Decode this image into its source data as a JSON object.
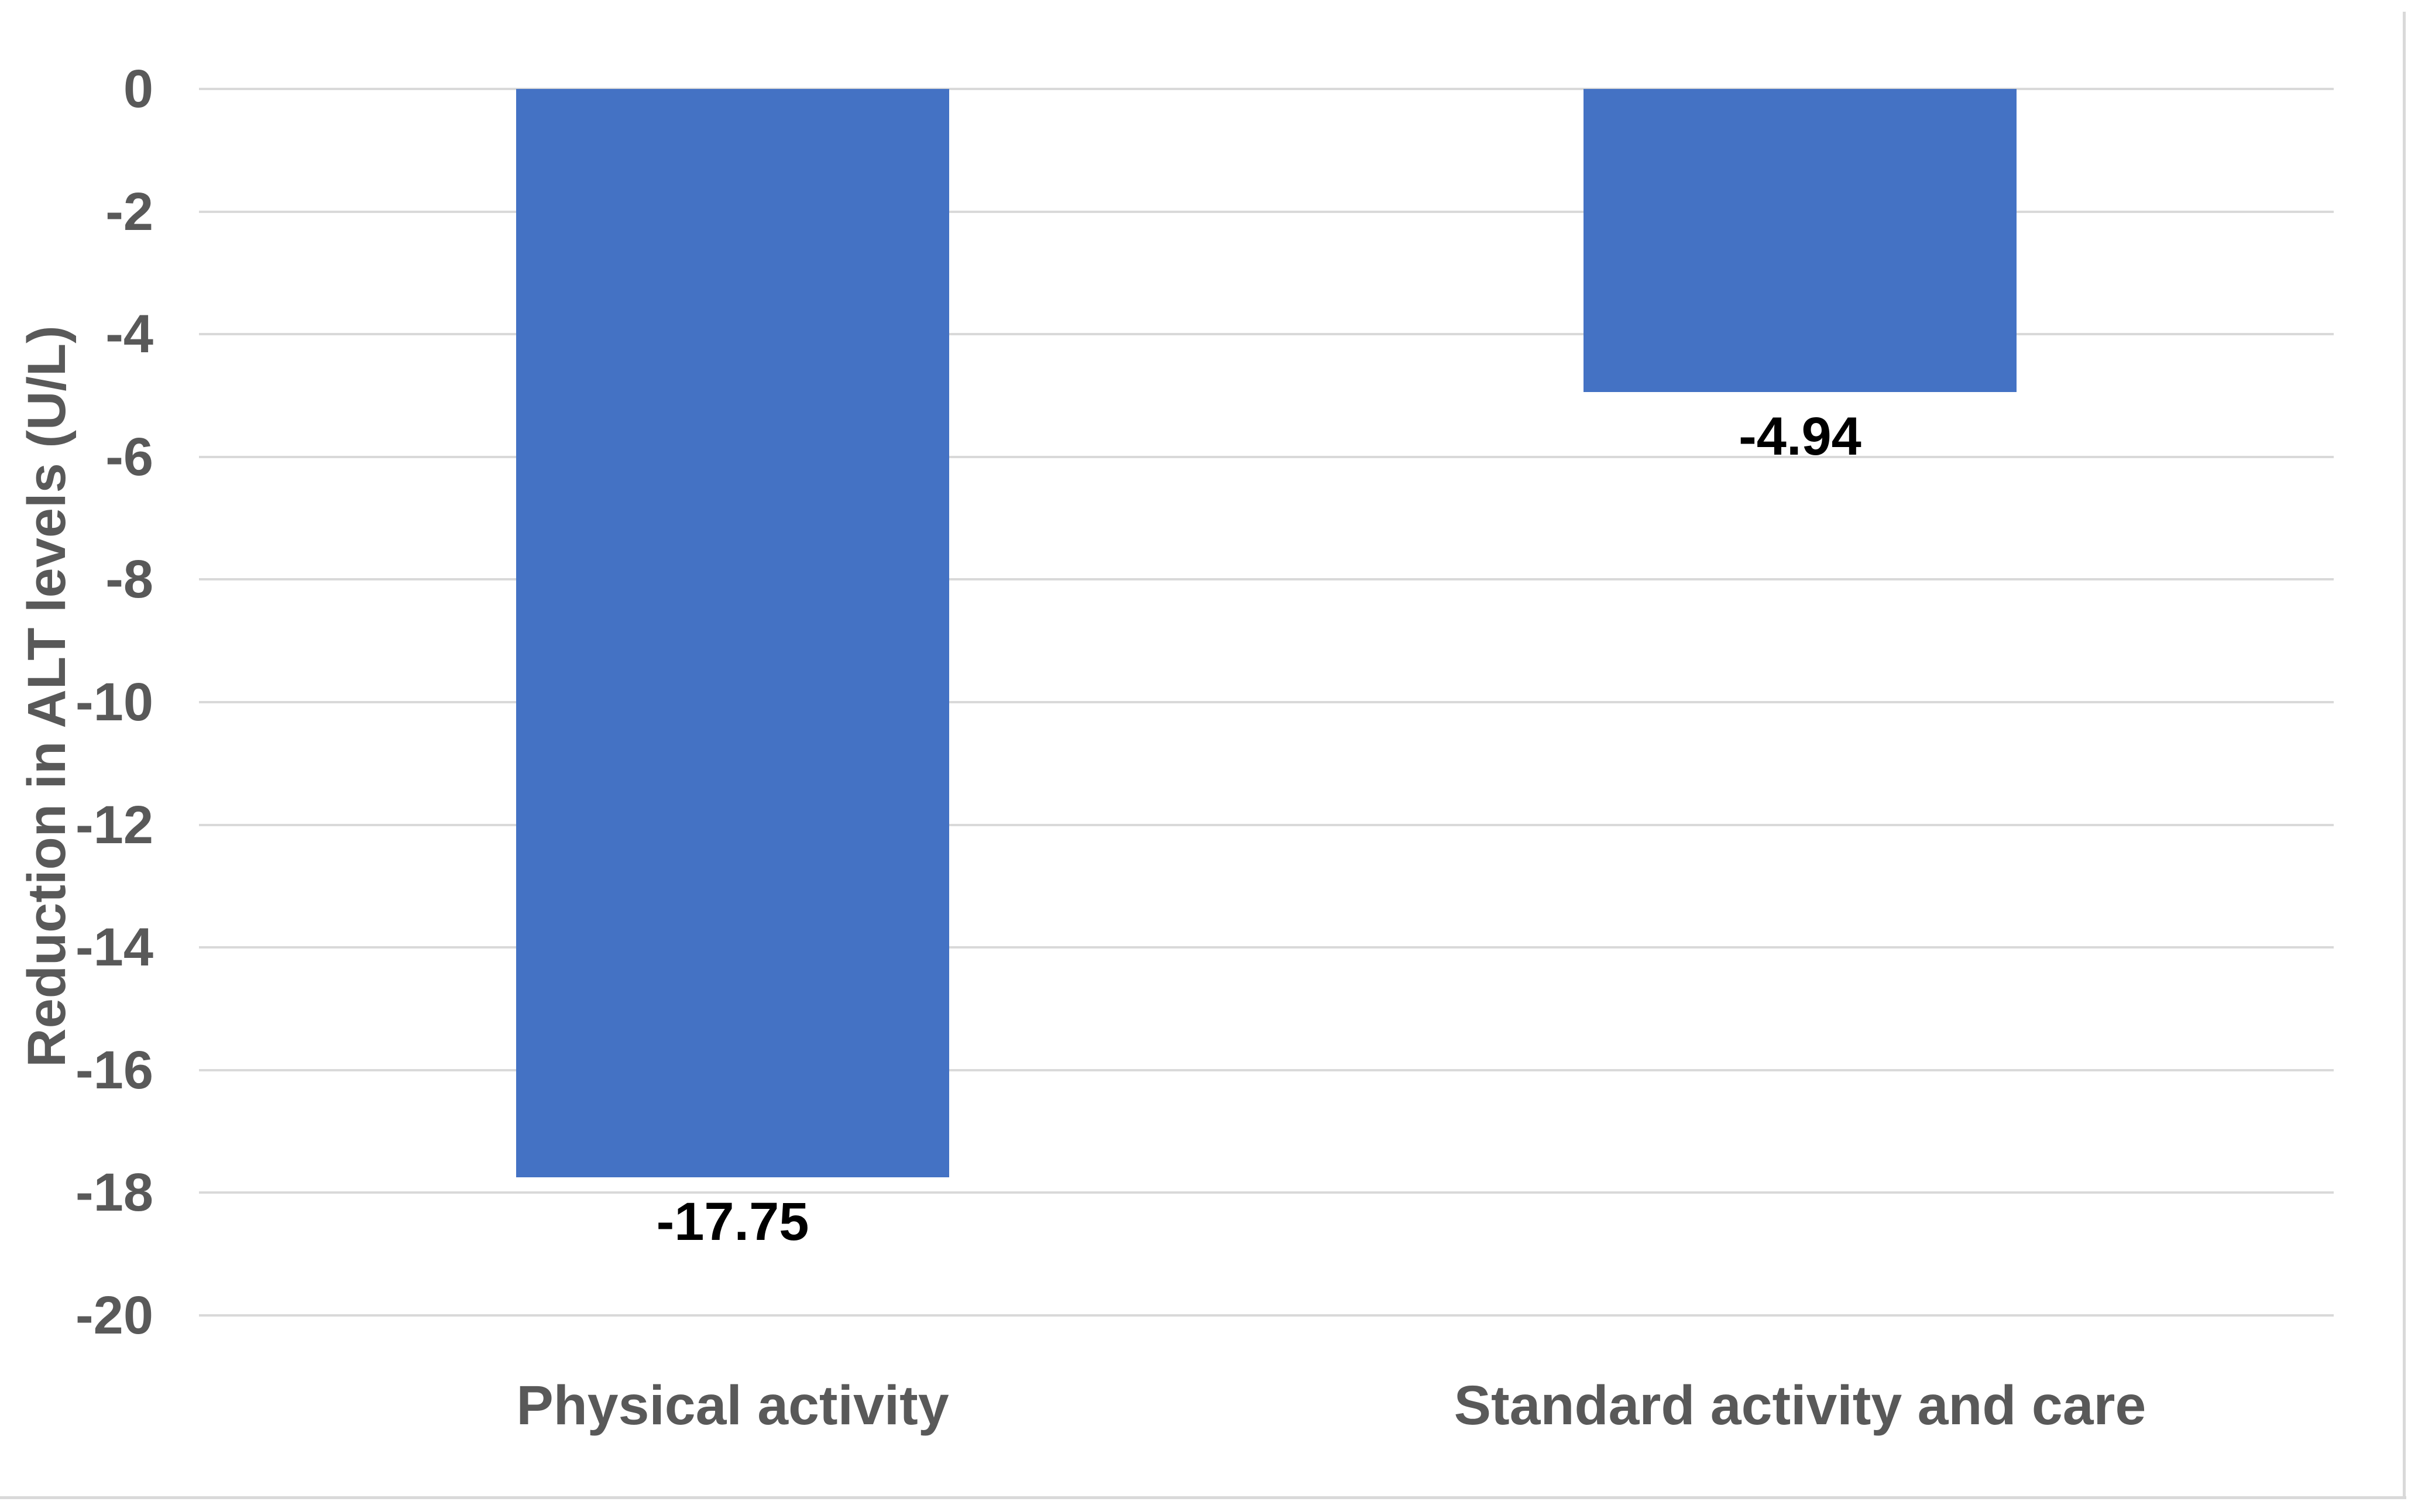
{
  "chart_data": {
    "type": "bar",
    "title": "",
    "xlabel": "",
    "ylabel": "Reduction in ALT levels (U/L)",
    "categories": [
      "Physical activity",
      "Standard activity and care"
    ],
    "series": [
      {
        "name": "Reduction in ALT levels",
        "values": [
          -17.75,
          -4.94
        ]
      }
    ],
    "data_labels": [
      "-17.75",
      "-4.94"
    ],
    "ylim": [
      -20,
      0
    ],
    "yticks": [
      0,
      -2,
      -4,
      -6,
      -8,
      -10,
      -12,
      -14,
      -16,
      -18,
      -20
    ],
    "ytick_labels": [
      "0",
      "-2",
      "-4",
      "-6",
      "-8",
      "-10",
      "-12",
      "-14",
      "-16",
      "-18",
      "-20"
    ],
    "grid": true,
    "legend_position": "none",
    "colors": {
      "bar": "#4472C4",
      "gridline": "#D9D9D9",
      "chart_border": "#D9D9D9",
      "axis_text": "#595959",
      "data_label_text": "#000000",
      "background": "#FFFFFF"
    }
  }
}
